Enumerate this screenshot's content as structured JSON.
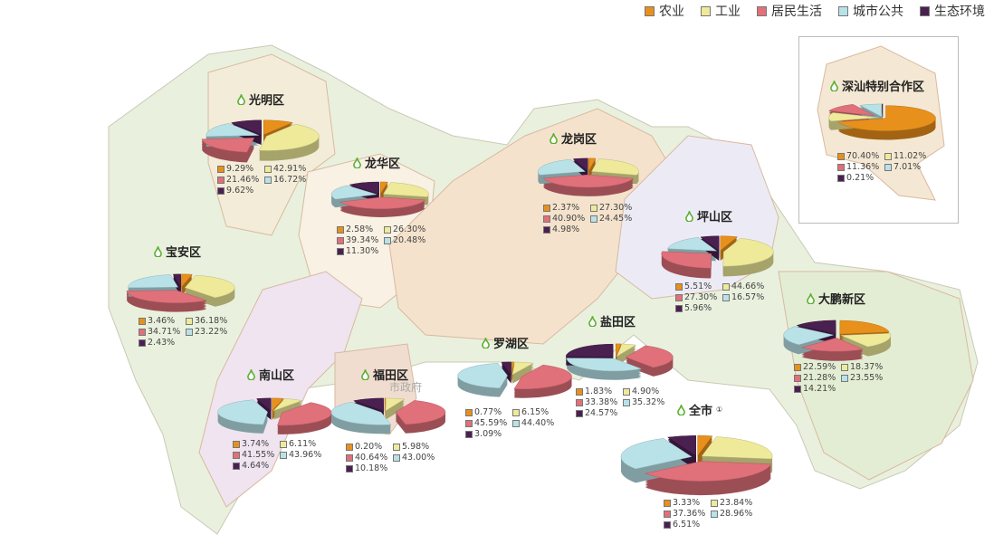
{
  "legend": [
    {
      "label": "农业",
      "color": "#e8901c"
    },
    {
      "label": "工业",
      "color": "#eeea9a"
    },
    {
      "label": "居民生活",
      "color": "#e0707a"
    },
    {
      "label": "城市公共",
      "color": "#b8e2e8"
    },
    {
      "label": "生态环境",
      "color": "#4a2050"
    }
  ],
  "districts": [
    {
      "name": "光明区",
      "values": [
        "9.29%",
        "42.91%",
        "21.46%",
        "16.72%",
        "9.62%"
      ]
    },
    {
      "name": "龙华区",
      "values": [
        "2.58%",
        "26.30%",
        "39.34%",
        "20.48%",
        "11.30%"
      ]
    },
    {
      "name": "龙岗区",
      "values": [
        "2.37%",
        "27.30%",
        "40.90%",
        "24.45%",
        "4.98%"
      ]
    },
    {
      "name": "坪山区",
      "values": [
        "5.51%",
        "44.66%",
        "27.30%",
        "16.57%",
        "5.96%"
      ]
    },
    {
      "name": "宝安区",
      "values": [
        "3.46%",
        "36.18%",
        "34.71%",
        "23.22%",
        "2.43%"
      ]
    },
    {
      "name": "南山区",
      "values": [
        "3.74%",
        "6.11%",
        "41.55%",
        "43.96%",
        "4.64%"
      ]
    },
    {
      "name": "福田区",
      "values": [
        "0.20%",
        "5.98%",
        "40.64%",
        "43.00%",
        "10.18%"
      ]
    },
    {
      "name": "罗湖区",
      "values": [
        "0.77%",
        "6.15%",
        "45.59%",
        "44.40%",
        "3.09%"
      ]
    },
    {
      "name": "盐田区",
      "values": [
        "1.83%",
        "4.90%",
        "33.38%",
        "35.32%",
        "24.57%"
      ]
    },
    {
      "name": "大鹏新区",
      "values": [
        "22.59%",
        "18.37%",
        "21.28%",
        "23.55%",
        "14.21%"
      ]
    },
    {
      "name": "全市",
      "note": "①",
      "values": [
        "3.33%",
        "23.84%",
        "37.36%",
        "28.96%",
        "6.51%"
      ]
    },
    {
      "name": "深汕特别合作区",
      "values": [
        "70.40%",
        "11.02%",
        "11.36%",
        "7.01%",
        "0.21%"
      ]
    }
  ],
  "map_label": "市政府"
}
